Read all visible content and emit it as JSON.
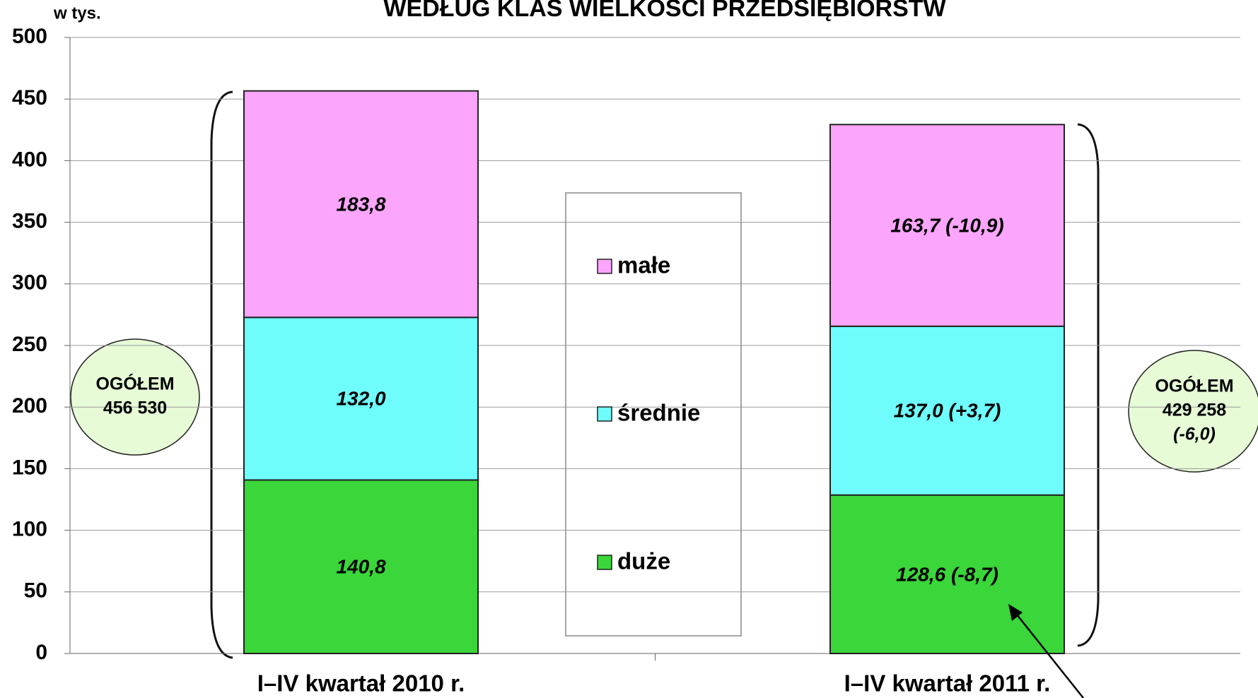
{
  "chart_data": {
    "type": "stacked_bar",
    "title": "WEDŁUG KLAS WIELKOŚCI PRZEDSIĘBIORSTW",
    "y_label": "w tys.",
    "categories": [
      "I–IV kwartał 2010 r.",
      "I–IV kwartał 2011 r."
    ],
    "series": [
      {
        "name": "duże",
        "color": "#3ad63a",
        "values": [
          140.8,
          128.6
        ],
        "value_labels": [
          "140,8",
          "128,6 (-8,7)"
        ]
      },
      {
        "name": "średnie",
        "color": "#6ffcfc",
        "values": [
          132.0,
          137.0
        ],
        "value_labels": [
          "132,0",
          "137,0 (+3,7)"
        ]
      },
      {
        "name": "małe",
        "color": "#fca5fc",
        "values": [
          183.8,
          163.7
        ],
        "value_labels": [
          "183,8",
          "163,7 (-10,9)"
        ]
      }
    ],
    "ylim": [
      0,
      500
    ],
    "yticks": [
      0,
      50,
      100,
      150,
      200,
      250,
      300,
      350,
      400,
      450,
      500
    ],
    "grid": true,
    "annotations": [
      {
        "lines": [
          "OGÓŁEM",
          "456 530"
        ]
      },
      {
        "lines": [
          "OGÓŁEM",
          "429 258",
          "(-6,0)"
        ]
      }
    ]
  }
}
